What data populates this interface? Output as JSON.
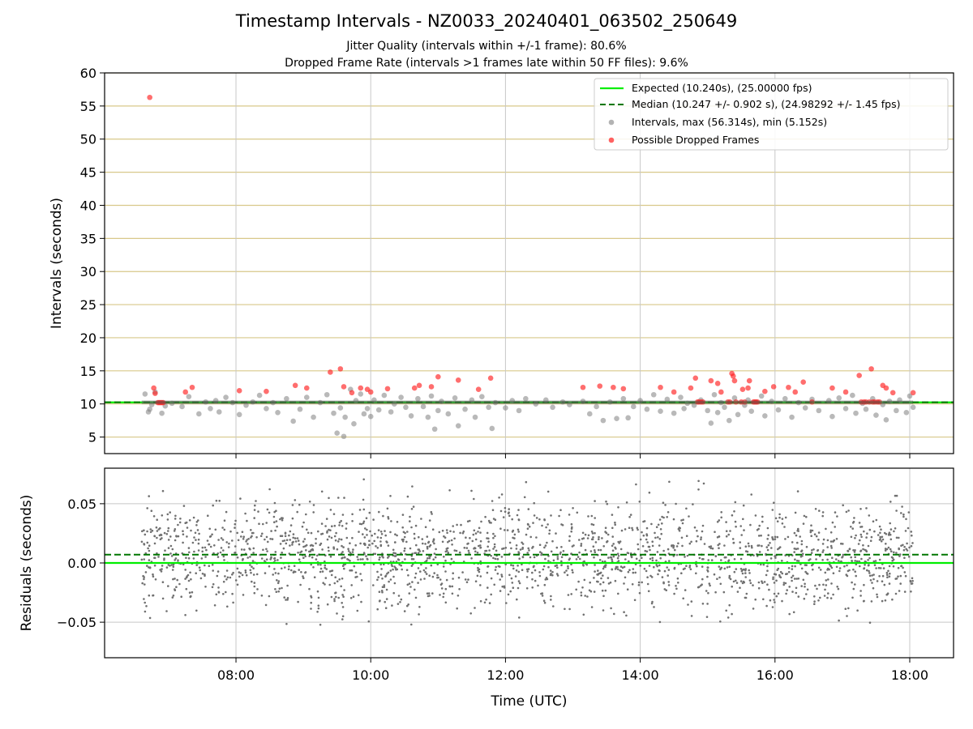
{
  "chart_data": [
    {
      "type": "scatter",
      "title": "Timestamp Intervals - NZ0033_20240401_063502_250649",
      "subtitles": [
        "Jitter Quality (intervals within +/-1 frame): 80.6%",
        "Dropped Frame Rate (intervals >1 frames late within 50 FF files): 9.6%"
      ],
      "ylabel": "Intervals (seconds)",
      "xlabel": "",
      "xlim_hours": [
        6.05,
        18.65
      ],
      "ylim": [
        2.5,
        60
      ],
      "yticks": [
        5,
        10,
        15,
        20,
        25,
        30,
        35,
        40,
        45,
        50,
        55,
        60
      ],
      "xticks_hours": [
        8,
        10,
        12,
        14,
        16,
        18
      ],
      "grid": true,
      "legend_position": "top-right",
      "legend": [
        "Expected (10.240s), (25.00000 fps)",
        "Median (10.247 +/- 0.902 s), (24.98292 +/- 1.45 fps)",
        "Intervals, max (56.314s), min (5.152s)",
        "Possible Dropped Frames"
      ],
      "expected_line": 10.24,
      "median_line": 10.247,
      "colors": {
        "expected": "#00ee00",
        "median": "#007700",
        "intervals": "#808080",
        "dropped": "#ff2020",
        "hgrid": "#d8c88a",
        "vgrid": "#c8c8c8"
      },
      "intervals": [
        [
          6.65,
          11.5
        ],
        [
          6.7,
          8.8
        ],
        [
          6.72,
          9.2
        ],
        [
          6.75,
          9.9
        ],
        [
          6.8,
          11.8
        ],
        [
          6.9,
          8.6
        ],
        [
          6.95,
          9.7
        ],
        [
          7.05,
          10.1
        ],
        [
          7.2,
          9.6
        ],
        [
          7.3,
          11.1
        ],
        [
          7.45,
          8.5
        ],
        [
          7.55,
          10.3
        ],
        [
          7.62,
          9.3
        ],
        [
          7.7,
          10.5
        ],
        [
          7.75,
          8.8
        ],
        [
          7.85,
          11.0
        ],
        [
          7.95,
          10.2
        ],
        [
          8.05,
          8.4
        ],
        [
          8.15,
          9.8
        ],
        [
          8.25,
          10.3
        ],
        [
          8.35,
          11.3
        ],
        [
          8.45,
          9.3
        ],
        [
          8.55,
          10.2
        ],
        [
          8.62,
          8.7
        ],
        [
          8.75,
          10.8
        ],
        [
          8.85,
          7.4
        ],
        [
          8.95,
          9.2
        ],
        [
          9.05,
          11.0
        ],
        [
          9.15,
          8.0
        ],
        [
          9.25,
          10.2
        ],
        [
          9.35,
          11.4
        ],
        [
          9.45,
          8.6
        ],
        [
          9.5,
          5.6
        ],
        [
          9.55,
          9.4
        ],
        [
          9.6,
          5.1
        ],
        [
          9.62,
          8.0
        ],
        [
          9.7,
          12.2
        ],
        [
          9.75,
          7.0
        ],
        [
          9.78,
          10.5
        ],
        [
          9.85,
          11.5
        ],
        [
          9.9,
          8.5
        ],
        [
          9.95,
          9.3
        ],
        [
          10.0,
          8.1
        ],
        [
          10.05,
          10.6
        ],
        [
          10.12,
          9.1
        ],
        [
          10.2,
          11.3
        ],
        [
          10.3,
          8.8
        ],
        [
          10.35,
          10.0
        ],
        [
          10.45,
          11.0
        ],
        [
          10.52,
          9.5
        ],
        [
          10.6,
          8.2
        ],
        [
          10.7,
          10.8
        ],
        [
          10.78,
          9.6
        ],
        [
          10.85,
          8.0
        ],
        [
          10.9,
          11.2
        ],
        [
          10.95,
          6.2
        ],
        [
          11.0,
          9.0
        ],
        [
          11.05,
          10.4
        ],
        [
          11.15,
          8.5
        ],
        [
          11.25,
          10.9
        ],
        [
          11.3,
          6.7
        ],
        [
          11.4,
          9.2
        ],
        [
          11.5,
          10.6
        ],
        [
          11.55,
          8.0
        ],
        [
          11.65,
          11.1
        ],
        [
          11.75,
          9.5
        ],
        [
          11.8,
          6.3
        ],
        [
          11.85,
          10.2
        ],
        [
          12.0,
          9.4
        ],
        [
          12.1,
          10.5
        ],
        [
          12.2,
          9.0
        ],
        [
          12.3,
          10.8
        ],
        [
          12.45,
          10.0
        ],
        [
          12.6,
          10.6
        ],
        [
          12.7,
          9.5
        ],
        [
          12.85,
          10.3
        ],
        [
          12.95,
          9.9
        ],
        [
          13.15,
          10.4
        ],
        [
          13.25,
          8.5
        ],
        [
          13.35,
          9.6
        ],
        [
          13.45,
          7.5
        ],
        [
          13.55,
          10.3
        ],
        [
          13.65,
          7.8
        ],
        [
          13.75,
          10.8
        ],
        [
          13.82,
          7.9
        ],
        [
          13.9,
          9.6
        ],
        [
          14.0,
          10.5
        ],
        [
          14.1,
          9.2
        ],
        [
          14.2,
          11.4
        ],
        [
          14.3,
          8.9
        ],
        [
          14.4,
          10.7
        ],
        [
          14.5,
          8.6
        ],
        [
          14.6,
          11.0
        ],
        [
          14.65,
          9.3
        ],
        [
          14.7,
          10.1
        ],
        [
          14.8,
          9.8
        ],
        [
          14.9,
          10.6
        ],
        [
          15.0,
          9.0
        ],
        [
          15.05,
          7.1
        ],
        [
          15.1,
          11.4
        ],
        [
          15.15,
          8.7
        ],
        [
          15.2,
          10.2
        ],
        [
          15.25,
          9.5
        ],
        [
          15.32,
          7.5
        ],
        [
          15.4,
          10.9
        ],
        [
          15.45,
          8.4
        ],
        [
          15.55,
          9.8
        ],
        [
          15.6,
          10.6
        ],
        [
          15.65,
          8.9
        ],
        [
          15.8,
          11.2
        ],
        [
          15.85,
          8.2
        ],
        [
          15.95,
          10.4
        ],
        [
          16.05,
          9.1
        ],
        [
          16.15,
          10.8
        ],
        [
          16.25,
          8.0
        ],
        [
          16.35,
          10.2
        ],
        [
          16.45,
          9.4
        ],
        [
          16.55,
          10.7
        ],
        [
          16.65,
          9.0
        ],
        [
          16.8,
          10.5
        ],
        [
          16.85,
          8.1
        ],
        [
          16.95,
          10.9
        ],
        [
          17.05,
          9.3
        ],
        [
          17.15,
          11.3
        ],
        [
          17.2,
          8.6
        ],
        [
          17.3,
          10.1
        ],
        [
          17.35,
          9.2
        ],
        [
          17.45,
          10.8
        ],
        [
          17.5,
          8.3
        ],
        [
          17.6,
          9.9
        ],
        [
          17.65,
          7.6
        ],
        [
          17.7,
          10.4
        ],
        [
          17.8,
          9.0
        ],
        [
          17.85,
          10.6
        ],
        [
          17.95,
          8.7
        ],
        [
          18.0,
          11.2
        ],
        [
          18.05,
          9.5
        ]
      ],
      "dropped_frames": [
        [
          6.72,
          56.3
        ],
        [
          6.78,
          12.4
        ],
        [
          6.8,
          11.6
        ],
        [
          6.84,
          10.2
        ],
        [
          6.86,
          10.2
        ],
        [
          6.88,
          10.2
        ],
        [
          6.9,
          10.2
        ],
        [
          6.92,
          10.2
        ],
        [
          7.25,
          11.8
        ],
        [
          7.35,
          12.5
        ],
        [
          8.05,
          12.0
        ],
        [
          8.45,
          11.9
        ],
        [
          8.88,
          12.8
        ],
        [
          9.05,
          12.4
        ],
        [
          9.4,
          14.8
        ],
        [
          9.55,
          15.3
        ],
        [
          9.6,
          12.6
        ],
        [
          9.72,
          11.7
        ],
        [
          9.85,
          12.4
        ],
        [
          9.95,
          12.2
        ],
        [
          10.0,
          11.8
        ],
        [
          10.25,
          12.3
        ],
        [
          10.65,
          12.4
        ],
        [
          10.72,
          12.8
        ],
        [
          10.9,
          12.6
        ],
        [
          11.0,
          14.1
        ],
        [
          11.3,
          13.6
        ],
        [
          11.6,
          12.2
        ],
        [
          11.78,
          13.9
        ],
        [
          13.15,
          12.5
        ],
        [
          13.4,
          12.7
        ],
        [
          13.6,
          12.5
        ],
        [
          13.75,
          12.3
        ],
        [
          14.3,
          12.5
        ],
        [
          14.5,
          11.8
        ],
        [
          14.75,
          12.4
        ],
        [
          14.82,
          13.9
        ],
        [
          14.85,
          10.3
        ],
        [
          14.87,
          10.3
        ],
        [
          14.9,
          10.3
        ],
        [
          14.93,
          10.3
        ],
        [
          15.05,
          13.5
        ],
        [
          15.15,
          13.1
        ],
        [
          15.2,
          11.8
        ],
        [
          15.3,
          10.3
        ],
        [
          15.33,
          10.3
        ],
        [
          15.36,
          14.6
        ],
        [
          15.38,
          14.2
        ],
        [
          15.4,
          13.5
        ],
        [
          15.42,
          10.3
        ],
        [
          15.5,
          10.3
        ],
        [
          15.52,
          12.2
        ],
        [
          15.55,
          10.3
        ],
        [
          15.6,
          12.4
        ],
        [
          15.62,
          13.5
        ],
        [
          15.68,
          10.3
        ],
        [
          15.7,
          10.3
        ],
        [
          15.72,
          10.3
        ],
        [
          15.74,
          10.3
        ],
        [
          15.85,
          11.9
        ],
        [
          15.98,
          12.6
        ],
        [
          16.2,
          12.5
        ],
        [
          16.3,
          11.8
        ],
        [
          16.42,
          13.3
        ],
        [
          16.55,
          10.3
        ],
        [
          16.85,
          12.4
        ],
        [
          17.05,
          11.8
        ],
        [
          17.25,
          14.3
        ],
        [
          17.28,
          10.3
        ],
        [
          17.32,
          10.3
        ],
        [
          17.35,
          10.3
        ],
        [
          17.4,
          10.3
        ],
        [
          17.43,
          15.3
        ],
        [
          17.45,
          10.3
        ],
        [
          17.48,
          10.3
        ],
        [
          17.52,
          10.3
        ],
        [
          17.55,
          10.3
        ],
        [
          17.6,
          12.8
        ],
        [
          17.65,
          12.4
        ],
        [
          17.75,
          11.7
        ],
        [
          18.05,
          11.7
        ]
      ]
    },
    {
      "type": "scatter",
      "ylabel": "Residuals (seconds)",
      "xlabel": "Time (UTC)",
      "xlim_hours": [
        6.05,
        18.65
      ],
      "ylim": [
        -0.08,
        0.08
      ],
      "yticks": [
        -0.05,
        0.0,
        0.05
      ],
      "ytick_labels": [
        "−0.05",
        "0.00",
        "0.05"
      ],
      "xticks_hours": [
        8,
        10,
        12,
        14,
        16,
        18
      ],
      "xtick_labels": [
        "08:00",
        "10:00",
        "12:00",
        "14:00",
        "16:00",
        "18:00"
      ],
      "grid": true,
      "expected_line": 0.0,
      "median_line": 0.007,
      "residual_range_hours": [
        6.6,
        18.05
      ],
      "residual_spread": 0.022,
      "point_count": 2200
    }
  ]
}
